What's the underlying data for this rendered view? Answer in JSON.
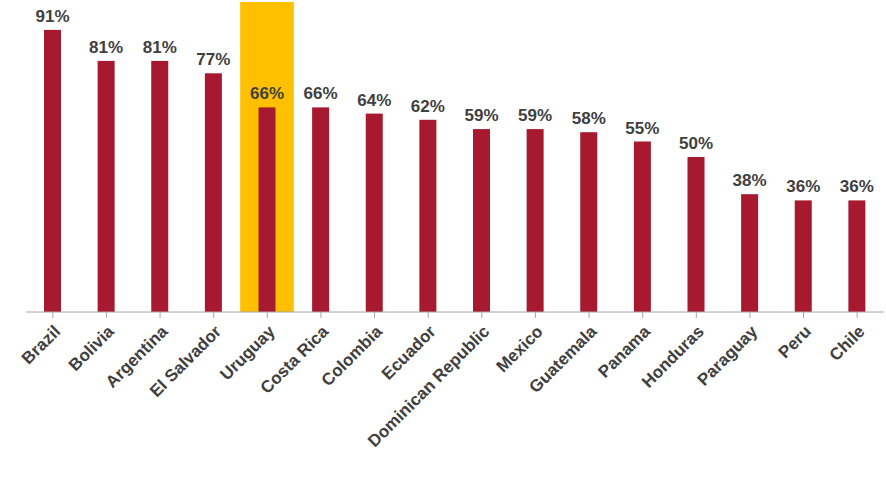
{
  "chart_data": {
    "type": "bar",
    "categories": [
      "Brazil",
      "Bolivia",
      "Argentina",
      "El Salvador",
      "Uruguay",
      "Costa Rica",
      "Colombia",
      "Ecuador",
      "Dominican Republic",
      "Mexico",
      "Guatemala",
      "Panama",
      "Honduras",
      "Paraguay",
      "Peru",
      "Chile"
    ],
    "values": [
      91,
      81,
      81,
      77,
      66,
      66,
      64,
      62,
      59,
      59,
      58,
      55,
      50,
      38,
      36,
      36
    ],
    "value_labels": [
      "91%",
      "81%",
      "81%",
      "77%",
      "66%",
      "66%",
      "64%",
      "62%",
      "59%",
      "59%",
      "58%",
      "55%",
      "50%",
      "38%",
      "36%",
      "36%"
    ],
    "color": "#a6192e",
    "ylim": [
      0,
      100
    ],
    "data_labels": true,
    "tick_labels": "x",
    "grid": false
  }
}
